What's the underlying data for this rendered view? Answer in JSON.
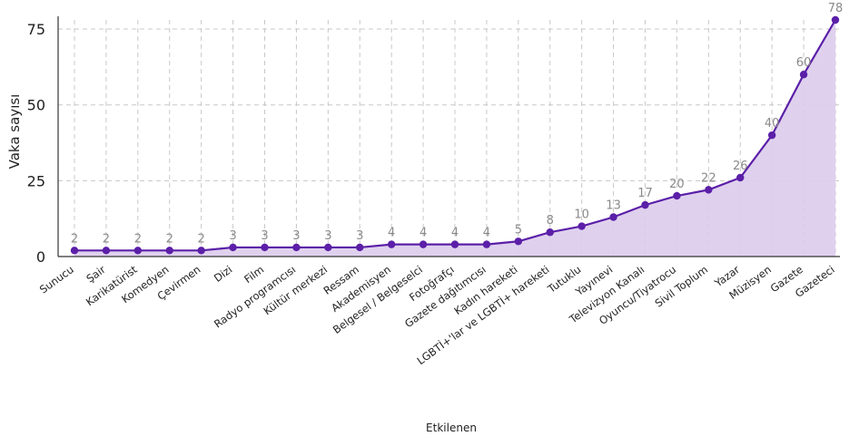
{
  "chart_data": {
    "type": "area",
    "xlabel": "Etkilenen",
    "ylabel": "Vaka sayısı",
    "ylim": [
      0,
      78
    ],
    "yticks": [
      0,
      25,
      50,
      75
    ],
    "grid": true,
    "categories": [
      "Sunucu",
      "Şair",
      "Karikatürist",
      "Komedyen",
      "Çevirmen",
      "Dizi",
      "Film",
      "Radyo programcısı",
      "Kültür merkezi",
      "Ressam",
      "Akademisyen",
      "Belgesel / Belgeselci",
      "Fotoğrafçı",
      "Gazete dağıtımcısı",
      "Kadın hareketi",
      "LGBTİ+'lar ve LGBTİ+ hareketi",
      "Tutuklu",
      "Yayınevi",
      "Televizyon Kanalı",
      "Oyuncu/Tiyatrocu",
      "Sivil Toplum",
      "Yazar",
      "Müzisyen",
      "Gazete",
      "Gazeteci"
    ],
    "series": [
      {
        "values": [
          2,
          2,
          2,
          2,
          2,
          3,
          3,
          3,
          3,
          3,
          4,
          4,
          4,
          4,
          5,
          8,
          10,
          13,
          17,
          20,
          22,
          26,
          40,
          60,
          78
        ]
      }
    ],
    "colors": {
      "line": "#5b1fa8",
      "fill": "#dcccec",
      "grid": "#c8c8c8",
      "axis": "#333333"
    }
  }
}
